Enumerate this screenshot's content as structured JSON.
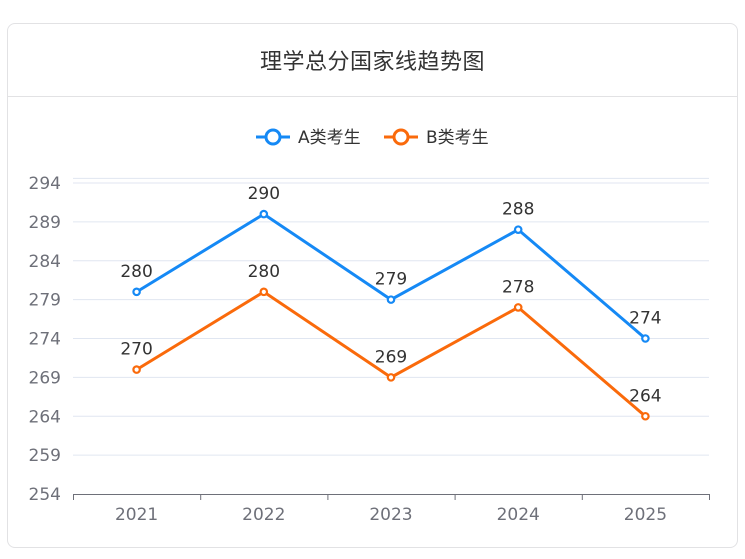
{
  "title": "理学总分国家线趋势图",
  "legend": [
    {
      "label": "A类考生",
      "color": "#1589f5"
    },
    {
      "label": "B类考生",
      "color": "#fa6a0b"
    }
  ],
  "colors": {
    "grid": "#e0e6f1",
    "axis": "#6e7079",
    "text": "#333333"
  },
  "chart_data": {
    "type": "line",
    "title": "理学总分国家线趋势图",
    "categories": [
      "2021",
      "2022",
      "2023",
      "2024",
      "2025"
    ],
    "series": [
      {
        "name": "A类考生",
        "values": [
          280,
          290,
          279,
          288,
          274
        ],
        "color": "#1589f5"
      },
      {
        "name": "B类考生",
        "values": [
          270,
          280,
          269,
          278,
          264
        ],
        "color": "#fa6a0b"
      }
    ],
    "xlabel": "",
    "ylabel": "",
    "yticks": [
      254,
      259,
      264,
      269,
      274,
      279,
      284,
      289,
      294
    ],
    "ylim": [
      254,
      294.6
    ],
    "grid": true,
    "legend_position": "top"
  }
}
